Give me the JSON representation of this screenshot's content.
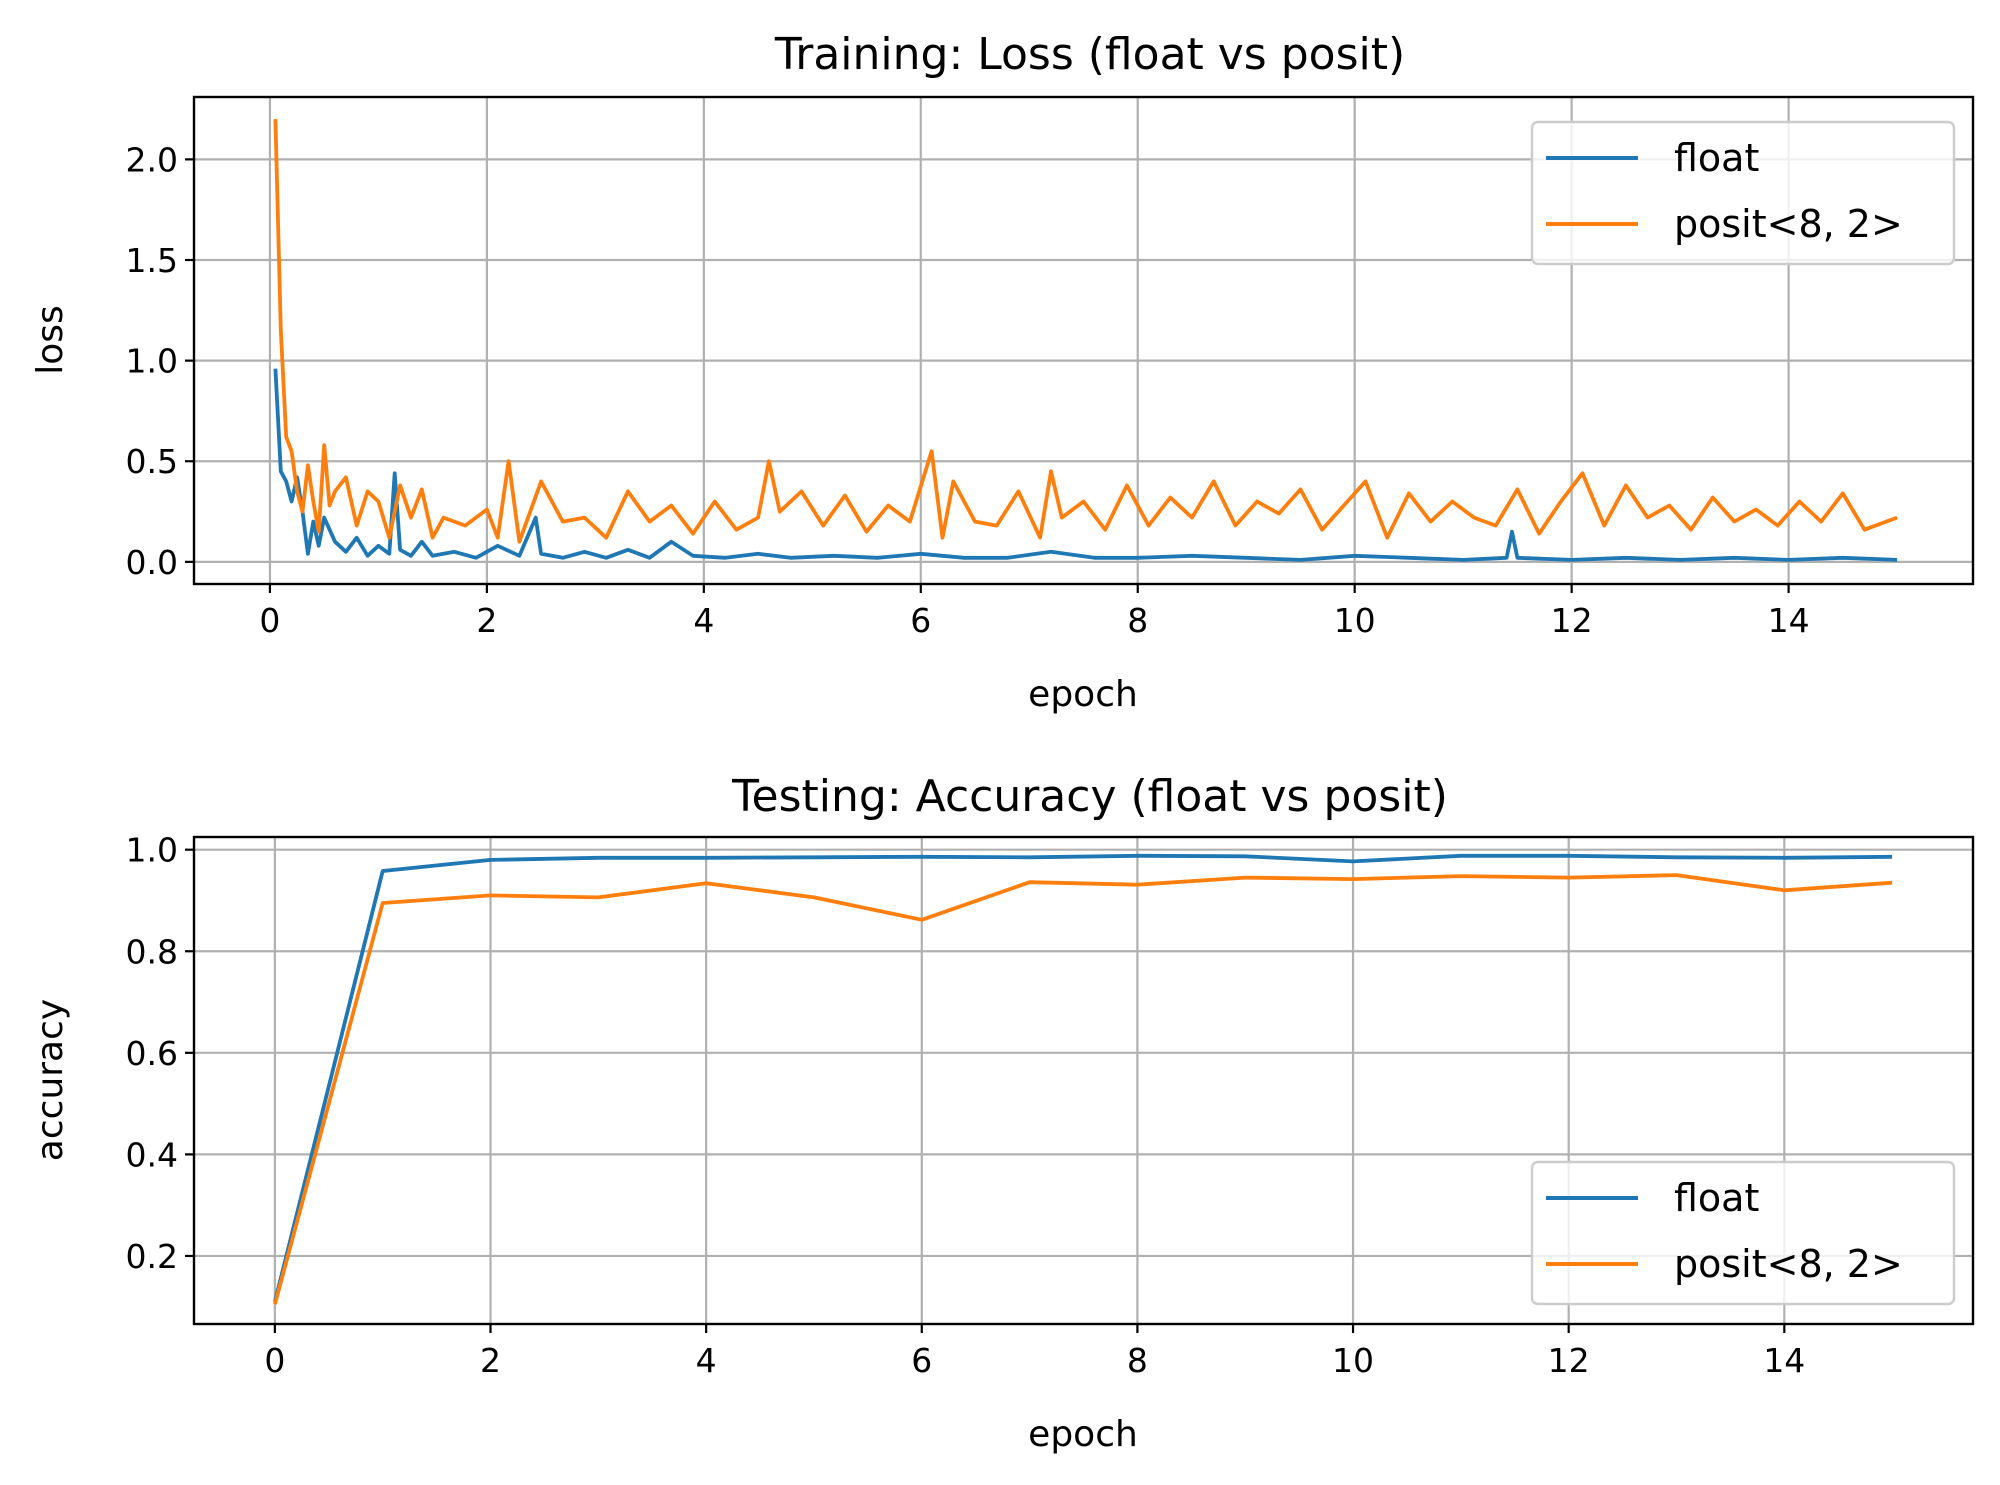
{
  "figure": {
    "colors": {
      "float": "#1f77b4",
      "posit": "#ff7f0e"
    }
  },
  "chart_data": [
    {
      "type": "line",
      "title": "Training: Loss (float vs posit)",
      "xlabel": "epoch",
      "ylabel": "loss",
      "xlim": [
        -0.7,
        15.7
      ],
      "ylim": [
        -0.11,
        2.31
      ],
      "xticks": [
        0,
        2,
        4,
        6,
        8,
        10,
        12,
        14
      ],
      "yticks": [
        0.0,
        0.5,
        1.0,
        1.5,
        2.0
      ],
      "ytick_labels": [
        "0.0",
        "0.5",
        "1.0",
        "1.5",
        "2.0"
      ],
      "grid": true,
      "legend_position": "upper right",
      "series": [
        {
          "name": "float",
          "x": [
            0.05,
            0.1,
            0.15,
            0.2,
            0.25,
            0.3,
            0.35,
            0.4,
            0.45,
            0.5,
            0.6,
            0.7,
            0.8,
            0.9,
            1.0,
            1.1,
            1.15,
            1.2,
            1.3,
            1.4,
            1.5,
            1.7,
            1.9,
            2.1,
            2.3,
            2.45,
            2.5,
            2.7,
            2.9,
            3.1,
            3.3,
            3.5,
            3.7,
            3.9,
            4.2,
            4.5,
            4.8,
            5.2,
            5.6,
            6.0,
            6.4,
            6.8,
            7.2,
            7.6,
            8.0,
            8.5,
            9.0,
            9.5,
            10.0,
            10.5,
            11.0,
            11.4,
            11.45,
            11.5,
            12.0,
            12.5,
            13.0,
            13.5,
            14.0,
            14.5,
            15.0
          ],
          "y": [
            0.96,
            0.45,
            0.4,
            0.3,
            0.42,
            0.25,
            0.04,
            0.2,
            0.08,
            0.22,
            0.1,
            0.05,
            0.12,
            0.03,
            0.08,
            0.04,
            0.44,
            0.06,
            0.03,
            0.1,
            0.03,
            0.05,
            0.02,
            0.08,
            0.03,
            0.22,
            0.04,
            0.02,
            0.05,
            0.02,
            0.06,
            0.02,
            0.1,
            0.03,
            0.02,
            0.04,
            0.02,
            0.03,
            0.02,
            0.04,
            0.02,
            0.02,
            0.05,
            0.02,
            0.02,
            0.03,
            0.02,
            0.01,
            0.03,
            0.02,
            0.01,
            0.02,
            0.15,
            0.02,
            0.01,
            0.02,
            0.01,
            0.02,
            0.01,
            0.02,
            0.01
          ]
        },
        {
          "name": "posit<8, 2>",
          "x": [
            0.05,
            0.1,
            0.15,
            0.2,
            0.25,
            0.3,
            0.35,
            0.4,
            0.45,
            0.5,
            0.55,
            0.6,
            0.7,
            0.8,
            0.9,
            1.0,
            1.1,
            1.2,
            1.3,
            1.4,
            1.5,
            1.6,
            1.8,
            2.0,
            2.1,
            2.2,
            2.3,
            2.5,
            2.7,
            2.9,
            3.1,
            3.3,
            3.5,
            3.7,
            3.9,
            4.1,
            4.3,
            4.5,
            4.6,
            4.7,
            4.9,
            5.1,
            5.3,
            5.5,
            5.7,
            5.9,
            6.1,
            6.2,
            6.3,
            6.5,
            6.7,
            6.9,
            7.1,
            7.2,
            7.3,
            7.5,
            7.7,
            7.9,
            8.1,
            8.3,
            8.5,
            8.7,
            8.9,
            9.1,
            9.3,
            9.5,
            9.7,
            9.9,
            10.1,
            10.3,
            10.5,
            10.7,
            10.9,
            11.1,
            11.3,
            11.5,
            11.7,
            11.9,
            12.1,
            12.3,
            12.5,
            12.7,
            12.9,
            13.1,
            13.3,
            13.5,
            13.7,
            13.9,
            14.1,
            14.3,
            14.5,
            14.7,
            14.9,
            15.0
          ],
          "y": [
            2.2,
            1.15,
            0.62,
            0.55,
            0.35,
            0.25,
            0.48,
            0.3,
            0.15,
            0.58,
            0.28,
            0.35,
            0.42,
            0.18,
            0.35,
            0.3,
            0.12,
            0.38,
            0.22,
            0.36,
            0.12,
            0.22,
            0.18,
            0.26,
            0.12,
            0.5,
            0.1,
            0.4,
            0.2,
            0.22,
            0.12,
            0.35,
            0.2,
            0.28,
            0.14,
            0.3,
            0.16,
            0.22,
            0.5,
            0.25,
            0.35,
            0.18,
            0.33,
            0.15,
            0.28,
            0.2,
            0.55,
            0.12,
            0.4,
            0.2,
            0.18,
            0.35,
            0.12,
            0.45,
            0.22,
            0.3,
            0.16,
            0.38,
            0.18,
            0.32,
            0.22,
            0.4,
            0.18,
            0.3,
            0.24,
            0.36,
            0.16,
            0.28,
            0.4,
            0.12,
            0.34,
            0.2,
            0.3,
            0.22,
            0.18,
            0.36,
            0.14,
            0.3,
            0.44,
            0.18,
            0.38,
            0.22,
            0.28,
            0.16,
            0.32,
            0.2,
            0.26,
            0.18,
            0.3,
            0.2,
            0.34,
            0.16,
            0.2,
            0.22
          ]
        }
      ]
    },
    {
      "type": "line",
      "title": "Testing: Accuracy (float vs posit)",
      "xlabel": "epoch",
      "ylabel": "accuracy",
      "xlim": [
        -0.75,
        15.75
      ],
      "ylim": [
        0.066,
        1.025
      ],
      "xticks": [
        0,
        2,
        4,
        6,
        8,
        10,
        12,
        14
      ],
      "yticks": [
        0.2,
        0.4,
        0.6,
        0.8,
        1.0
      ],
      "ytick_labels": [
        "0.2",
        "0.4",
        "0.6",
        "0.8",
        "1.0"
      ],
      "grid": true,
      "legend_position": "lower right",
      "series": [
        {
          "name": "float",
          "x": [
            0,
            1,
            2,
            3,
            4,
            5,
            6,
            7,
            8,
            9,
            10,
            11,
            12,
            13,
            14,
            15
          ],
          "y": [
            0.11,
            0.958,
            0.98,
            0.984,
            0.984,
            0.985,
            0.986,
            0.985,
            0.988,
            0.987,
            0.977,
            0.988,
            0.988,
            0.985,
            0.984,
            0.986
          ]
        },
        {
          "name": "posit<8, 2>",
          "x": [
            0,
            1,
            2,
            3,
            4,
            5,
            6,
            7,
            8,
            9,
            10,
            11,
            12,
            13,
            14,
            15
          ],
          "y": [
            0.105,
            0.895,
            0.91,
            0.906,
            0.934,
            0.906,
            0.862,
            0.936,
            0.931,
            0.945,
            0.942,
            0.948,
            0.945,
            0.95,
            0.92,
            0.935
          ]
        }
      ]
    }
  ]
}
